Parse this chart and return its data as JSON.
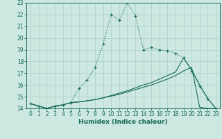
{
  "xlabel": "Humidex (Indice chaleur)",
  "background_color": "#cce8e0",
  "grid_color": "#aacfc8",
  "line_color": "#1a6b5a",
  "xlim": [
    -0.5,
    23.5
  ],
  "ylim": [
    14,
    23
  ],
  "xticks": [
    0,
    1,
    2,
    3,
    4,
    5,
    6,
    7,
    8,
    9,
    10,
    11,
    12,
    13,
    14,
    15,
    16,
    17,
    18,
    19,
    20,
    21,
    22,
    23
  ],
  "yticks": [
    14,
    15,
    16,
    17,
    18,
    19,
    20,
    21,
    22,
    23
  ],
  "line1_x": [
    0,
    1,
    2,
    3,
    4,
    5,
    6,
    7,
    8,
    9,
    10,
    11,
    12,
    13,
    14,
    15,
    16,
    17,
    18,
    19,
    20,
    21,
    22,
    23
  ],
  "line1_y": [
    14.4,
    14.2,
    14.0,
    14.2,
    14.3,
    14.5,
    15.7,
    16.4,
    17.5,
    19.5,
    22.0,
    21.5,
    23.0,
    21.9,
    19.0,
    19.2,
    19.0,
    18.9,
    18.7,
    18.3,
    17.2,
    15.9,
    14.8,
    14.0
  ],
  "line2_x": [
    0,
    1,
    2,
    3,
    4,
    5,
    6,
    7,
    8,
    9,
    10,
    11,
    12,
    13,
    14,
    15,
    16,
    17,
    18,
    19,
    20,
    21,
    22,
    23
  ],
  "line2_y": [
    14.4,
    14.2,
    14.0,
    14.2,
    14.3,
    14.5,
    14.55,
    14.65,
    14.75,
    14.9,
    15.05,
    15.2,
    15.4,
    15.6,
    15.8,
    16.0,
    16.25,
    16.5,
    16.8,
    17.2,
    17.5,
    14.1,
    14.0,
    14.0
  ],
  "line3_x": [
    0,
    1,
    2,
    3,
    4,
    5,
    6,
    7,
    8,
    9,
    10,
    11,
    12,
    13,
    14,
    15,
    16,
    17,
    18,
    19,
    20,
    21,
    22,
    23
  ],
  "line3_y": [
    14.4,
    14.2,
    14.0,
    14.2,
    14.3,
    14.5,
    14.55,
    14.65,
    14.75,
    14.9,
    15.1,
    15.3,
    15.5,
    15.75,
    16.0,
    16.2,
    16.5,
    16.8,
    17.1,
    18.3,
    17.3,
    16.0,
    14.85,
    14.0
  ]
}
